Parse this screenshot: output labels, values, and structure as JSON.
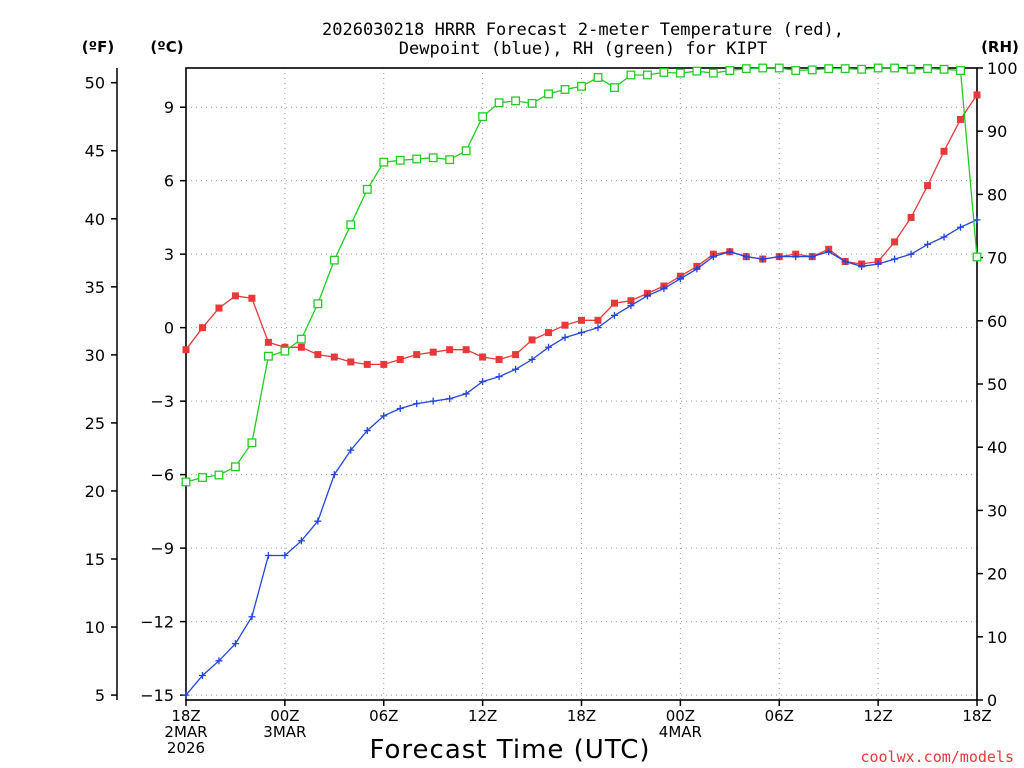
{
  "chart_data": {
    "type": "line",
    "title_lines": [
      "2026030218 HRRR Forecast 2-meter Temperature (red),",
      "Dewpoint (blue), RH (green) for KIPT"
    ],
    "left_outer_unit": "(ºF)",
    "left_inner_unit": "(ºC)",
    "right_unit": "(RH)",
    "xlabel": "Forecast Time (UTC)",
    "credit": "coolwx.com/models",
    "x_range_hours": [
      0,
      48
    ],
    "x_ticks": [
      {
        "hour": 0,
        "lines": [
          "18Z",
          "2MAR",
          "2026"
        ]
      },
      {
        "hour": 6,
        "lines": [
          "00Z",
          "3MAR"
        ]
      },
      {
        "hour": 12,
        "lines": [
          "06Z"
        ]
      },
      {
        "hour": 18,
        "lines": [
          "12Z"
        ]
      },
      {
        "hour": 24,
        "lines": [
          "18Z"
        ]
      },
      {
        "hour": 30,
        "lines": [
          "00Z",
          "4MAR"
        ]
      },
      {
        "hour": 36,
        "lines": [
          "06Z"
        ]
      },
      {
        "hour": 42,
        "lines": [
          "12Z"
        ]
      },
      {
        "hour": 48,
        "lines": [
          "18Z"
        ]
      }
    ],
    "celsius_range": [
      -15.2,
      10.6
    ],
    "celsius_ticks": [
      "9",
      "6",
      "3",
      "0",
      "−3",
      "−6",
      "−9",
      "−12",
      "−15"
    ],
    "fahrenheit_ticks": [
      "50",
      "45",
      "40",
      "35",
      "30",
      "25",
      "20",
      "15",
      "10",
      "5"
    ],
    "rh_range": [
      0,
      100
    ],
    "rh_ticks": [
      "100",
      "90",
      "80",
      "70",
      "60",
      "50",
      "40",
      "30",
      "20",
      "10",
      "0"
    ],
    "series": [
      {
        "name": "2-meter Temperature",
        "unit": "°C",
        "color": "#e8383a",
        "marker": "filled-square",
        "values": [
          -0.9,
          0.0,
          0.8,
          1.3,
          1.2,
          -0.6,
          -0.8,
          -0.8,
          -1.1,
          -1.2,
          -1.4,
          -1.5,
          -1.5,
          -1.3,
          -1.1,
          -1.0,
          -0.9,
          -0.9,
          -1.2,
          -1.3,
          -1.1,
          -0.5,
          -0.2,
          0.1,
          0.3,
          0.3,
          1.0,
          1.1,
          1.4,
          1.7,
          2.1,
          2.5,
          3.0,
          3.1,
          2.9,
          2.8,
          2.9,
          3.0,
          2.9,
          3.2,
          2.7,
          2.6,
          2.7,
          3.5,
          4.5,
          5.8,
          7.2,
          8.5,
          9.5
        ]
      },
      {
        "name": "Dewpoint",
        "unit": "°C",
        "color": "#2244e0",
        "marker": "plus",
        "values": [
          -15.0,
          -14.2,
          -13.6,
          -12.9,
          -11.8,
          -9.3,
          -9.3,
          -8.7,
          -7.9,
          -6.0,
          -5.0,
          -4.2,
          -3.6,
          -3.3,
          -3.1,
          -3.0,
          -2.9,
          -2.7,
          -2.2,
          -2.0,
          -1.7,
          -1.3,
          -0.8,
          -0.4,
          -0.2,
          0.0,
          0.5,
          0.9,
          1.3,
          1.6,
          2.0,
          2.4,
          2.9,
          3.1,
          2.9,
          2.8,
          2.9,
          2.9,
          2.9,
          3.1,
          2.7,
          2.5,
          2.6,
          2.8,
          3.0,
          3.4,
          3.7,
          4.1,
          4.4
        ]
      },
      {
        "name": "RH",
        "unit": "%",
        "color": "#22cc22",
        "marker": "open-square",
        "values": [
          34.5,
          35.2,
          35.6,
          36.9,
          40.7,
          54.4,
          55.2,
          57.1,
          62.7,
          69.6,
          75.2,
          80.8,
          85.1,
          85.4,
          85.6,
          85.8,
          85.5,
          86.9,
          92.3,
          94.5,
          94.8,
          94.4,
          95.9,
          96.6,
          97.1,
          98.5,
          96.9,
          98.9,
          98.9,
          99.3,
          99.2,
          99.5,
          99.2,
          99.6,
          99.9,
          100.0,
          100.0,
          99.6,
          99.7,
          99.9,
          99.9,
          99.8,
          100.0,
          100.0,
          99.8,
          99.9,
          99.8,
          99.6,
          70.1
        ]
      }
    ]
  }
}
